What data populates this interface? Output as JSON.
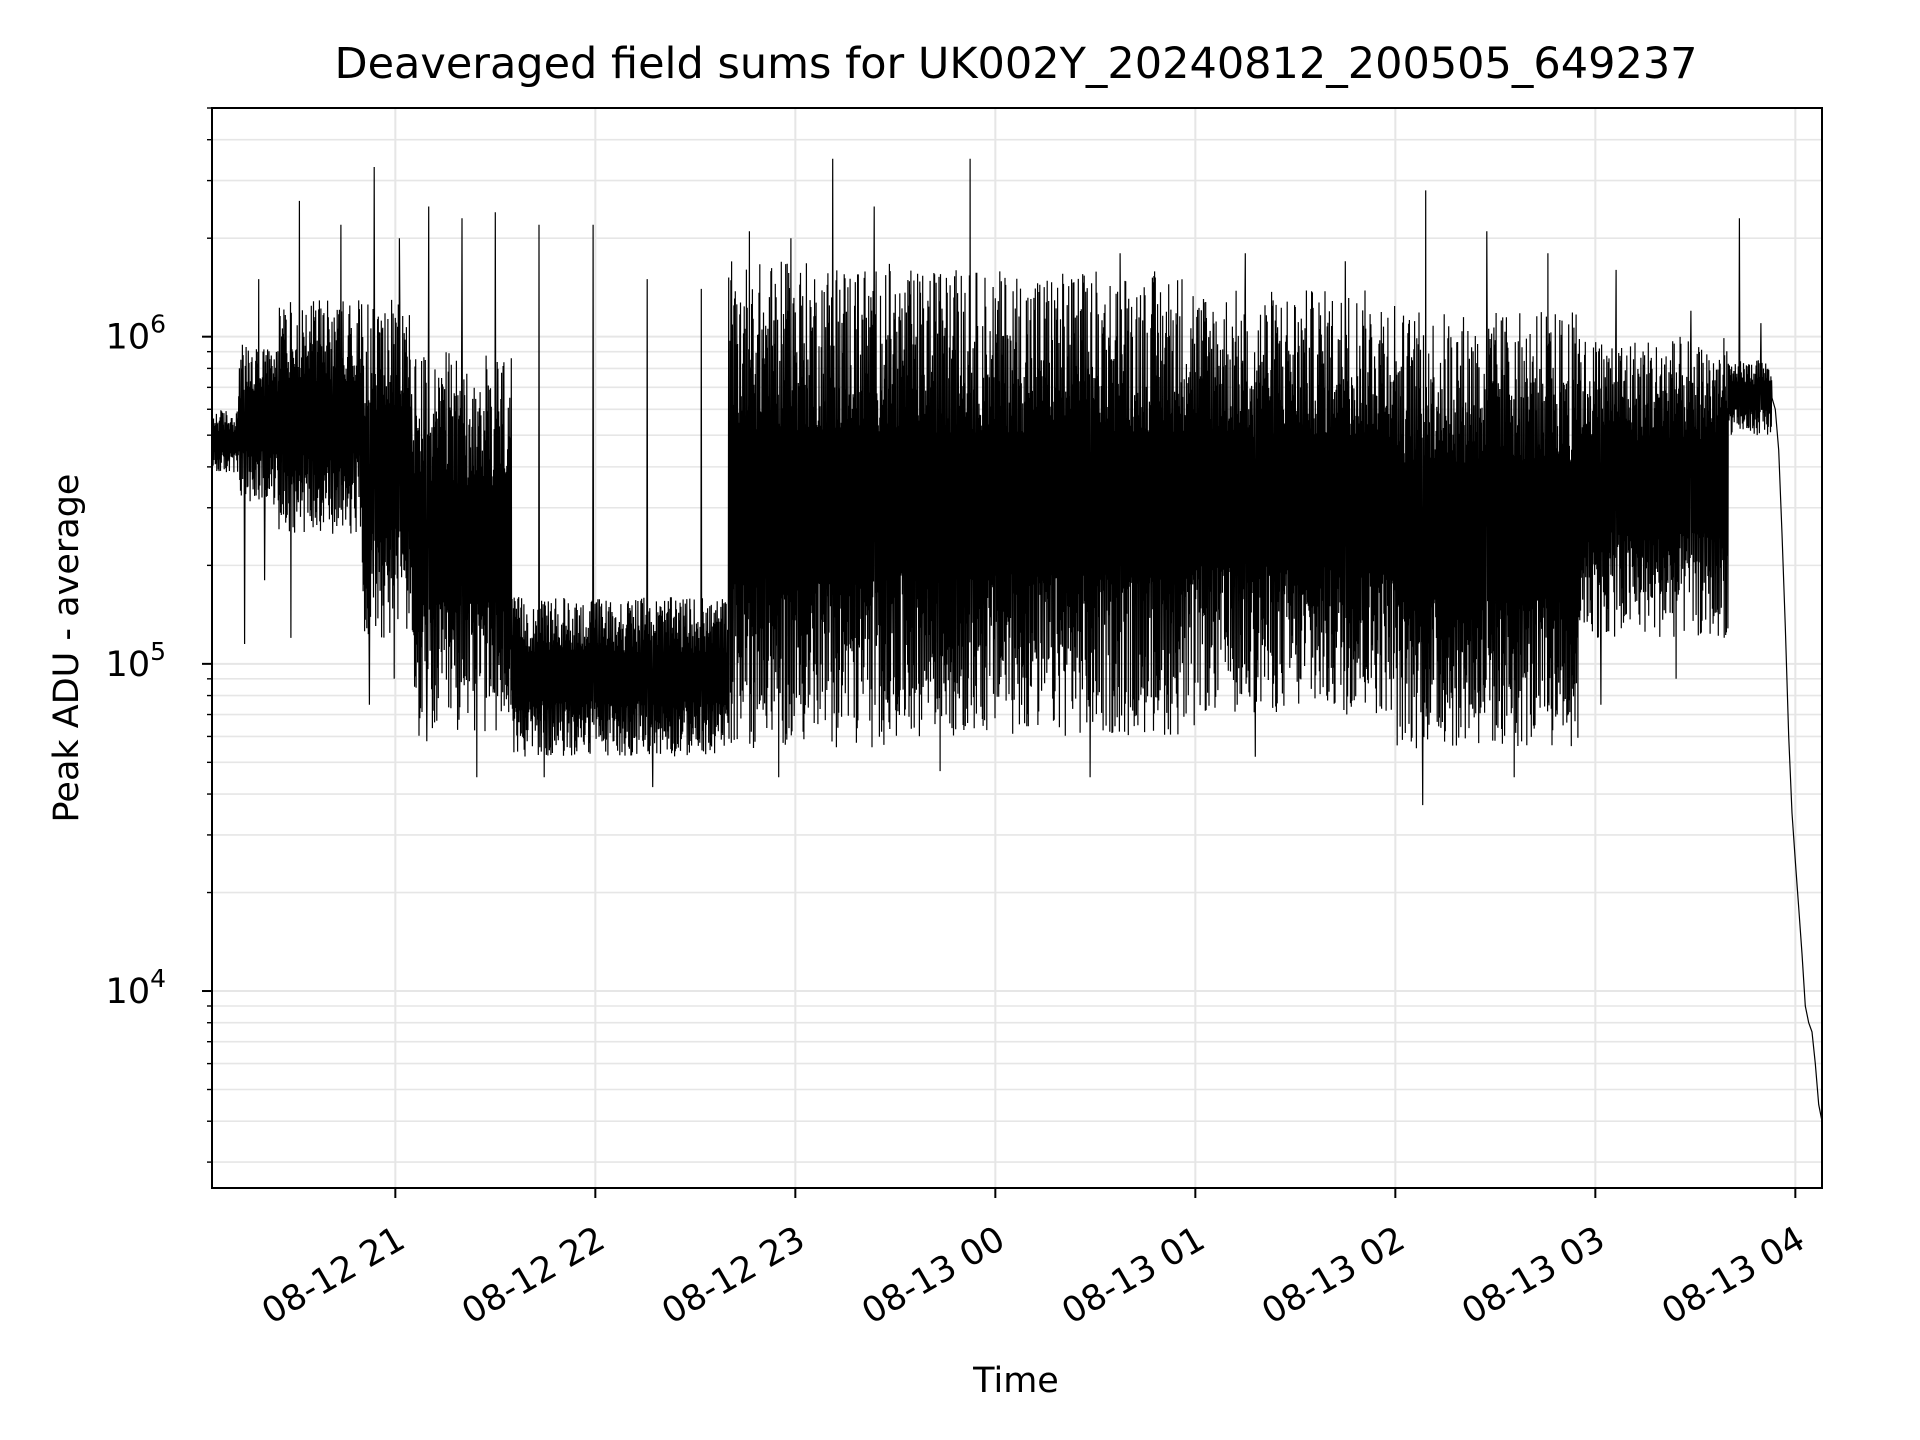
{
  "chart_data": {
    "type": "line",
    "title": "Deaveraged field sums for UK002Y_20240812_200505_649237",
    "xlabel": "Time",
    "ylabel": "Peak ADU - average",
    "yscale": "log",
    "ylim": [
      2500,
      5000000
    ],
    "xlim": [
      "2024-08-12 20:05",
      "2024-08-13 04:08"
    ],
    "x_ticks": [
      {
        "t": "2024-08-12 21:00",
        "label": "08-12 21"
      },
      {
        "t": "2024-08-12 22:00",
        "label": "08-12 22"
      },
      {
        "t": "2024-08-12 23:00",
        "label": "08-12 23"
      },
      {
        "t": "2024-08-13 00:00",
        "label": "08-13 00"
      },
      {
        "t": "2024-08-13 01:00",
        "label": "08-13 01"
      },
      {
        "t": "2024-08-13 02:00",
        "label": "08-13 02"
      },
      {
        "t": "2024-08-13 03:00",
        "label": "08-13 03"
      },
      {
        "t": "2024-08-13 04:00",
        "label": "08-13 04"
      }
    ],
    "y_ticks": [
      {
        "value": 10000,
        "base": "10",
        "exp": "4"
      },
      {
        "value": 100000,
        "base": "10",
        "exp": "5"
      },
      {
        "value": 1000000,
        "base": "10",
        "exp": "6"
      }
    ],
    "grid": true,
    "line_color": "#000000",
    "grid_color": "#e6e6e6",
    "series": [
      {
        "description_only": false,
        "segments": [
          {
            "start": "2024-08-12 20:05",
            "end": "2024-08-12 20:13",
            "kind": "band",
            "low": 380000,
            "high": 600000,
            "spikes": [],
            "dips": []
          },
          {
            "start": "2024-08-12 20:13",
            "end": "2024-08-12 20:25",
            "kind": "band",
            "low": 300000,
            "high": 950000,
            "spikes": [
              1500000
            ],
            "dips": [
              115000,
              180000
            ]
          },
          {
            "start": "2024-08-12 20:25",
            "end": "2024-08-12 20:50",
            "kind": "band",
            "low": 250000,
            "high": 1300000,
            "spikes": [
              2600000,
              2200000
            ],
            "dips": [
              120000,
              250000
            ]
          },
          {
            "start": "2024-08-12 20:50",
            "end": "2024-08-12 21:05",
            "kind": "band",
            "low": 120000,
            "high": 1300000,
            "spikes": [
              3300000,
              2000000
            ],
            "dips": [
              75000,
              90000
            ]
          },
          {
            "start": "2024-08-12 21:05",
            "end": "2024-08-12 21:35",
            "kind": "band",
            "low": 60000,
            "high": 900000,
            "spikes": [
              2500000,
              2300000,
              2400000
            ],
            "dips": [
              58000,
              45000
            ]
          },
          {
            "start": "2024-08-12 21:35",
            "end": "2024-08-12 22:40",
            "kind": "band",
            "low": 52000,
            "high": 160000,
            "spikes": [
              2200000,
              2200000,
              1500000,
              1400000
            ],
            "dips": [
              45000,
              42000
            ]
          },
          {
            "start": "2024-08-12 22:40",
            "end": "2024-08-12 23:30",
            "kind": "band",
            "low": 55000,
            "high": 1700000,
            "spikes": [
              2100000,
              2000000,
              3500000,
              2500000
            ],
            "dips": [
              45000
            ]
          },
          {
            "start": "2024-08-12 23:30",
            "end": "2024-08-13 01:00",
            "kind": "band",
            "low": 60000,
            "high": 1600000,
            "spikes": [
              3500000,
              1800000
            ],
            "dips": [
              47000,
              45000
            ]
          },
          {
            "start": "2024-08-13 01:00",
            "end": "2024-08-13 02:00",
            "kind": "band",
            "low": 70000,
            "high": 1400000,
            "spikes": [
              1800000,
              1700000
            ],
            "dips": [
              52000
            ]
          },
          {
            "start": "2024-08-13 02:00",
            "end": "2024-08-13 02:55",
            "kind": "band",
            "low": 55000,
            "high": 1200000,
            "spikes": [
              2800000,
              2100000,
              1800000
            ],
            "dips": [
              37000,
              45000
            ]
          },
          {
            "start": "2024-08-13 02:55",
            "end": "2024-08-13 03:40",
            "kind": "band",
            "low": 120000,
            "high": 1000000,
            "spikes": [
              1600000,
              1200000
            ],
            "dips": [
              75000,
              90000
            ]
          },
          {
            "start": "2024-08-13 03:40",
            "end": "2024-08-13 03:53",
            "kind": "band",
            "low": 500000,
            "high": 850000,
            "spikes": [
              2300000,
              1100000
            ],
            "dips": []
          },
          {
            "start": "2024-08-13 03:53",
            "end": "2024-08-13 04:08",
            "kind": "decay",
            "points": [
              [
                0,
                650000
              ],
              [
                1.0,
                600000
              ],
              [
                2.0,
                450000
              ],
              [
                3.0,
                250000
              ],
              [
                4.0,
                130000
              ],
              [
                5.0,
                60000
              ],
              [
                6.0,
                35000
              ],
              [
                7.0,
                25000
              ],
              [
                8.0,
                18000
              ],
              [
                9.0,
                13000
              ],
              [
                10.0,
                9000
              ],
              [
                11.0,
                8000
              ],
              [
                12.0,
                7500
              ],
              [
                13.0,
                6000
              ],
              [
                14.0,
                4500
              ],
              [
                15.0,
                4000
              ]
            ]
          }
        ]
      }
    ]
  }
}
